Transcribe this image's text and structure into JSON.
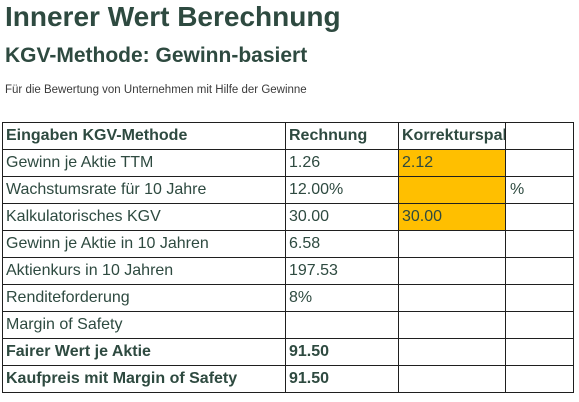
{
  "header": {
    "title": "Innerer Wert Berechnung",
    "subtitle": "KGV-Methode: Gewinn-basiert",
    "description": "Für die Bewertung von Unternehmen mit Hilfe der Gewinne"
  },
  "table": {
    "columns": [
      "Eingaben KGV-Methode",
      "Rechnung",
      "Korrekturspalte",
      ""
    ],
    "rows": [
      {
        "label": "Gewinn je Aktie TTM",
        "value": "1.26",
        "correction": "2.12",
        "unit": ""
      },
      {
        "label": "Wachstumsrate für 10 Jahre",
        "value": "12.00%",
        "correction": "",
        "unit": "%"
      },
      {
        "label": "Kalkulatorisches KGV",
        "value": "30.00",
        "correction": "30.00",
        "unit": ""
      },
      {
        "label": "Gewinn je Aktie in 10 Jahren",
        "value": "6.58",
        "correction": "",
        "unit": ""
      },
      {
        "label": "Aktienkurs in 10 Jahren",
        "value": "197.53",
        "correction": "",
        "unit": ""
      },
      {
        "label": "Renditeforderung",
        "value": "8%",
        "correction": "",
        "unit": ""
      },
      {
        "label": "Margin of Safety",
        "value": "",
        "correction": "",
        "unit": ""
      },
      {
        "label": "Fairer Wert je Aktie",
        "value": "91.50",
        "correction": "",
        "unit": ""
      },
      {
        "label": "Kaufpreis mit Margin of Safety",
        "value": "91.50",
        "correction": "",
        "unit": ""
      }
    ]
  },
  "colors": {
    "heading": "#2e4a40",
    "input_highlight": "#ffbf00",
    "border": "#1f1f1f"
  }
}
